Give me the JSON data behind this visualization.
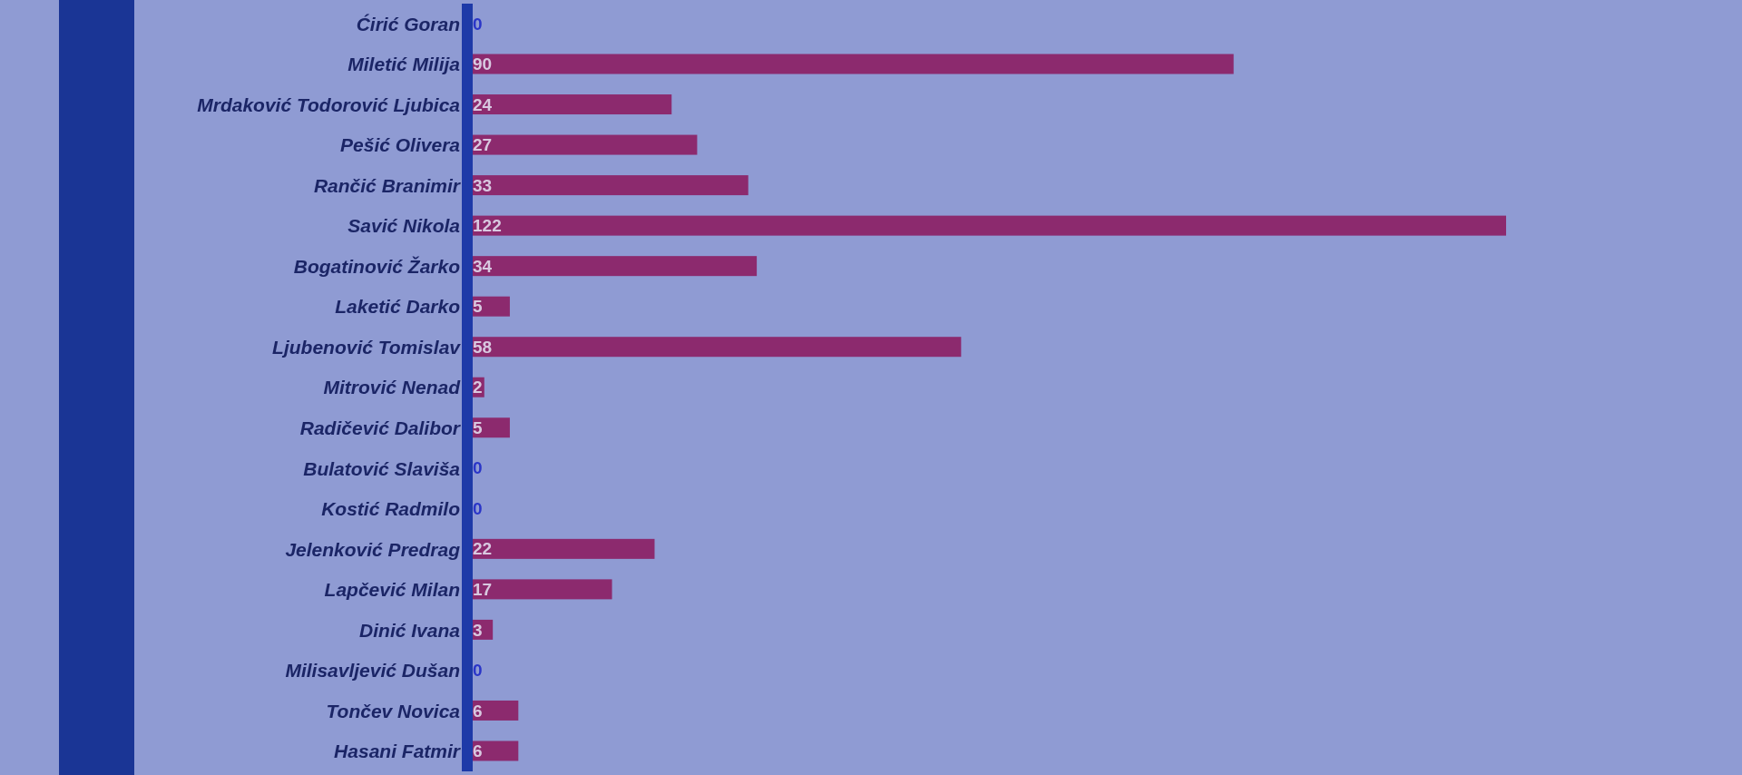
{
  "chart_data": {
    "type": "bar",
    "orientation": "horizontal",
    "categories": [
      "Ćirić Goran",
      "Miletić Milija",
      "Mrdaković Todorović Ljubica",
      "Pešić Olivera",
      "Rančić Branimir",
      "Savić Nikola",
      "Bogatinović Žarko",
      "Laketić Darko",
      "Ljubenović Tomislav",
      "Mitrović Nenad",
      "Radičević Dalibor",
      "Bulatović Slaviša",
      "Kostić Radmilo",
      "Jelenković Predrag",
      "Lapčević Milan",
      "Dinić Ivana",
      "Milisavljević Dušan",
      "Tončev Novica",
      "Hasani Fatmir"
    ],
    "values": [
      0,
      90,
      24,
      27,
      33,
      122,
      34,
      5,
      58,
      2,
      5,
      0,
      0,
      22,
      17,
      3,
      0,
      6,
      6
    ],
    "color": "#8c2a6e",
    "data_labels": true
  }
}
